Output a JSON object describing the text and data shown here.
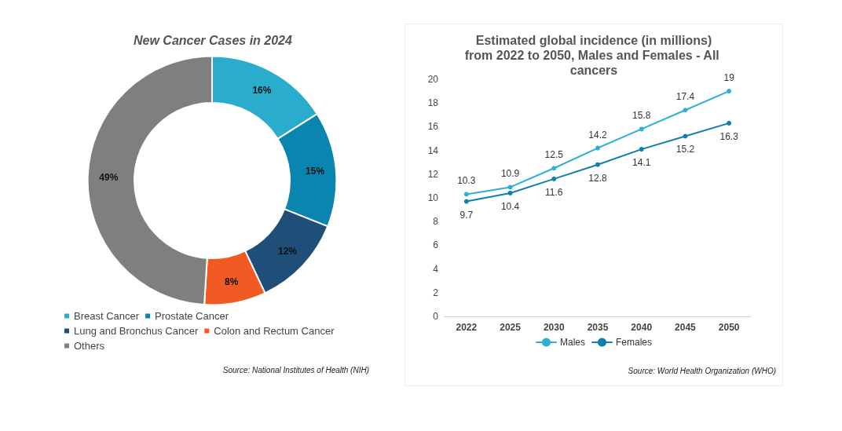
{
  "chart_data": [
    {
      "type": "donut",
      "title": "New Cancer Cases in 2024",
      "categories": [
        "Breast Cancer",
        "Prostate Cancer",
        "Lung and Bronchus Cancer",
        "Colon and Rectum Cancer",
        "Others"
      ],
      "values": [
        16,
        15,
        12,
        8,
        49
      ],
      "colors": [
        "#2aaccc",
        "#0a85b0",
        "#1f4e79",
        "#f15a22",
        "#7f7f7f"
      ],
      "value_labels": [
        "16%",
        "15%",
        "12%",
        "8%",
        "49%"
      ],
      "legend": "bottom",
      "annotations": [
        "Source: National Institutes of Health (NIH)"
      ]
    },
    {
      "type": "line",
      "title": "Estimated global incidence (in millions)\nfrom 2022 to 2050, Males and Females - All cancers",
      "categories": [
        "2022",
        "2025",
        "2030",
        "2035",
        "2040",
        "2045",
        "2050"
      ],
      "series": [
        {
          "name": "Males",
          "color": "#2cb0d6",
          "values": [
            10.3,
            10.9,
            12.5,
            14.2,
            15.8,
            17.4,
            19
          ]
        },
        {
          "name": "Females",
          "color": "#0e7fb0",
          "values": [
            9.7,
            10.4,
            11.6,
            12.8,
            14.1,
            15.2,
            16.3
          ]
        }
      ],
      "ylim": [
        0,
        20
      ],
      "yticks": [
        0,
        2,
        4,
        6,
        8,
        10,
        12,
        14,
        16,
        18,
        20
      ],
      "grid": false,
      "legend": "bottom",
      "marker": "circle",
      "line_style": "solid",
      "data_labels": true,
      "annotations": [
        "Source: World Health Organization (WHO)"
      ]
    }
  ]
}
